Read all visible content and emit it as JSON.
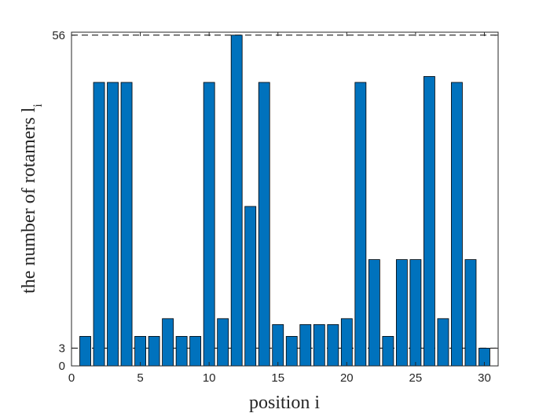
{
  "chart_data": {
    "type": "bar",
    "x": [
      1,
      2,
      3,
      4,
      5,
      6,
      7,
      8,
      9,
      10,
      11,
      12,
      13,
      14,
      15,
      16,
      17,
      18,
      19,
      20,
      21,
      22,
      23,
      24,
      25,
      26,
      27,
      28,
      29,
      30
    ],
    "values": [
      5,
      48,
      48,
      48,
      5,
      5,
      8,
      5,
      5,
      48,
      8,
      56,
      27,
      48,
      7,
      5,
      7,
      7,
      7,
      8,
      48,
      18,
      5,
      18,
      18,
      49,
      8,
      48,
      18,
      3
    ],
    "xlabel": "position i",
    "ylabel": "the number of rotamers l",
    "ylabel_subscript": "i",
    "xlim": [
      0,
      31
    ],
    "ylim": [
      0,
      56.5
    ],
    "xticks": [
      0,
      5,
      10,
      15,
      20,
      25,
      30
    ],
    "yticks": [
      0,
      3,
      56
    ],
    "reference_lines": [
      3,
      56
    ],
    "bar_color": "#0072BD",
    "grid": false,
    "legend": "none"
  }
}
